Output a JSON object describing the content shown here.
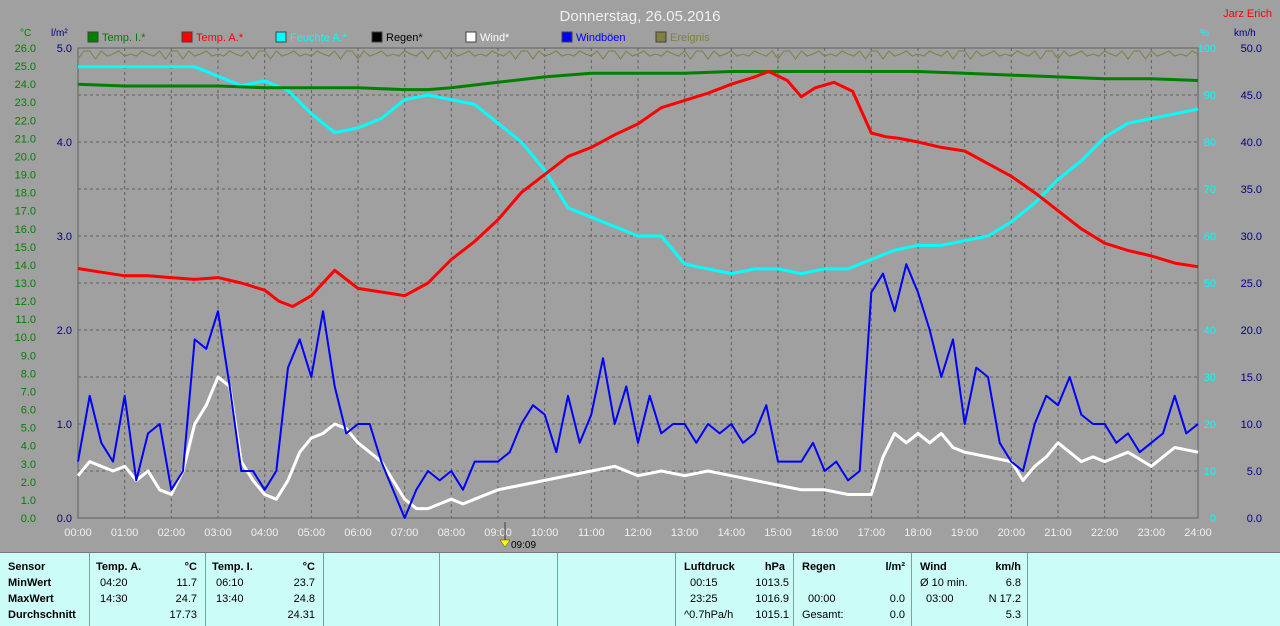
{
  "chart_data": {
    "type": "line",
    "title": "Donnerstag, 26.05.2016",
    "author": "Jarz Erich",
    "x_ticks": [
      "00:00",
      "01:00",
      "02:00",
      "03:00",
      "04:00",
      "05:00",
      "06:00",
      "07:00",
      "08:00",
      "09:00",
      "10:00",
      "11:00",
      "12:00",
      "13:00",
      "14:00",
      "15:00",
      "16:00",
      "17:00",
      "18:00",
      "19:00",
      "20:00",
      "21:00",
      "22:00",
      "23:00",
      "24:00"
    ],
    "marker_label": "09:09",
    "axes": {
      "temp": {
        "unit": "°C",
        "range": [
          0,
          26
        ],
        "ticks": [
          "0.0",
          "1.0",
          "2.0",
          "3.0",
          "4.0",
          "5.0",
          "6.0",
          "7.0",
          "8.0",
          "9.0",
          "10.0",
          "11.0",
          "12.0",
          "13.0",
          "14.0",
          "15.0",
          "16.0",
          "17.0",
          "18.0",
          "19.0",
          "20.0",
          "21.0",
          "22.0",
          "23.0",
          "24.0",
          "25.0",
          "26.0"
        ]
      },
      "rain": {
        "unit": "l/m²",
        "range": [
          0,
          5
        ],
        "ticks": [
          "0.0",
          "1.0",
          "2.0",
          "3.0",
          "4.0",
          "5.0"
        ]
      },
      "humidity": {
        "unit": "%",
        "range": [
          0,
          100
        ],
        "ticks": [
          "0",
          "10",
          "20",
          "30",
          "40",
          "50",
          "60",
          "70",
          "80",
          "90",
          "100"
        ]
      },
      "wind": {
        "unit": "km/h",
        "range": [
          0,
          50
        ],
        "ticks": [
          "0.0",
          "5.0",
          "10.0",
          "15.0",
          "20.0",
          "25.0",
          "30.0",
          "35.0",
          "40.0",
          "45.0",
          "50.0"
        ]
      }
    },
    "legend": [
      {
        "name": "Temp. I.*",
        "color": "#008000"
      },
      {
        "name": "Temp. A.*",
        "color": "#ff0000"
      },
      {
        "name": "Feuchte A.*",
        "color": "#00ffff"
      },
      {
        "name": "Regen*",
        "color": "#000000"
      },
      {
        "name": "Wind*",
        "color": "#ffffff"
      },
      {
        "name": "Windböen",
        "color": "#0000ff"
      },
      {
        "name": "Ereignis",
        "color": "#808040"
      }
    ],
    "series": [
      {
        "name": "Temp. I.*",
        "axis": "temp",
        "color": "#008000",
        "x": [
          0,
          1,
          2,
          3,
          4,
          5,
          6,
          7,
          7.5,
          8,
          9,
          10,
          11,
          12,
          13,
          14,
          15,
          16,
          17,
          18,
          19,
          20,
          21,
          22,
          23,
          24
        ],
        "y": [
          24.0,
          23.9,
          23.9,
          23.9,
          23.8,
          23.8,
          23.8,
          23.7,
          23.7,
          23.8,
          24.1,
          24.4,
          24.6,
          24.6,
          24.6,
          24.7,
          24.7,
          24.7,
          24.7,
          24.7,
          24.6,
          24.5,
          24.4,
          24.3,
          24.3,
          24.2
        ]
      },
      {
        "name": "Temp. A.*",
        "axis": "temp",
        "color": "#ff0000",
        "x": [
          0,
          0.5,
          1,
          1.5,
          2,
          2.5,
          3,
          3.5,
          4,
          4.3,
          4.6,
          5,
          5.5,
          6,
          6.5,
          7,
          7.5,
          8,
          8.5,
          9,
          9.5,
          10,
          10.5,
          11,
          11.5,
          12,
          12.5,
          13,
          13.5,
          14,
          14.5,
          14.8,
          15.2,
          15.5,
          15.8,
          16.2,
          16.6,
          17,
          17.3,
          17.6,
          18,
          18.5,
          19,
          19.5,
          20,
          20.5,
          21,
          21.5,
          22,
          22.5,
          23,
          23.5,
          24
        ],
        "y": [
          13.8,
          13.6,
          13.4,
          13.4,
          13.3,
          13.2,
          13.3,
          13.0,
          12.6,
          12.0,
          11.7,
          12.3,
          13.7,
          12.7,
          12.5,
          12.3,
          13.0,
          14.3,
          15.3,
          16.5,
          18.0,
          19.0,
          20.0,
          20.5,
          21.2,
          21.8,
          22.7,
          23.1,
          23.5,
          24.0,
          24.4,
          24.7,
          24.2,
          23.3,
          23.8,
          24.1,
          23.6,
          21.3,
          21.1,
          21.0,
          20.8,
          20.5,
          20.3,
          19.6,
          18.9,
          18.0,
          17.0,
          16.0,
          15.2,
          14.8,
          14.5,
          14.1,
          13.9
        ]
      },
      {
        "name": "Feuchte A.*",
        "axis": "humidity",
        "color": "#00ffff",
        "x": [
          0,
          0.5,
          1,
          1.5,
          2,
          2.5,
          3,
          3.5,
          4,
          4.5,
          5,
          5.5,
          6,
          6.5,
          7,
          7.5,
          8,
          8.5,
          9,
          9.5,
          10,
          10.5,
          11,
          11.5,
          12,
          12.5,
          13,
          13.5,
          14,
          14.5,
          15,
          15.5,
          16,
          16.5,
          17,
          17.5,
          18,
          18.5,
          19,
          19.5,
          20,
          20.5,
          21,
          21.5,
          22,
          22.5,
          23,
          23.5,
          24
        ],
        "y": [
          96,
          96,
          96,
          96,
          96,
          96,
          94,
          92,
          93,
          91,
          86,
          82,
          83,
          85,
          89,
          90,
          89,
          88,
          84,
          80,
          74,
          66,
          64,
          62,
          60,
          60,
          54,
          53,
          52,
          53,
          53,
          52,
          53,
          53,
          55,
          57,
          58,
          58,
          59,
          60,
          63,
          67,
          72,
          76,
          81,
          84,
          85,
          86,
          87
        ]
      },
      {
        "name": "Wind*",
        "axis": "wind",
        "color": "#ffffff",
        "x": [
          0,
          0.25,
          0.5,
          0.75,
          1,
          1.25,
          1.5,
          1.75,
          2,
          2.25,
          2.5,
          2.75,
          3,
          3.25,
          3.5,
          3.75,
          4,
          4.25,
          4.5,
          4.75,
          5,
          5.25,
          5.5,
          5.75,
          6,
          6.25,
          6.5,
          6.75,
          7,
          7.25,
          7.5,
          7.75,
          8,
          8.25,
          8.5,
          8.75,
          9,
          9.5,
          10,
          10.5,
          11,
          11.5,
          12,
          12.5,
          13,
          13.5,
          14,
          14.5,
          15,
          15.5,
          16,
          16.5,
          17,
          17.25,
          17.5,
          17.75,
          18,
          18.25,
          18.5,
          18.75,
          19,
          19.5,
          20,
          20.25,
          20.5,
          20.75,
          21,
          21.25,
          21.5,
          21.75,
          22,
          22.5,
          23,
          23.5,
          24
        ],
        "y": [
          4.5,
          6.0,
          5.5,
          5.0,
          5.5,
          4.0,
          5.0,
          3.0,
          2.5,
          5.0,
          10.0,
          12.0,
          15.0,
          14.0,
          6.0,
          4.0,
          2.5,
          2.0,
          4.0,
          7.0,
          8.5,
          9.0,
          10.0,
          9.5,
          8.0,
          7.0,
          6.0,
          4.0,
          2.0,
          1.0,
          1.0,
          1.5,
          2.0,
          1.5,
          2.0,
          2.5,
          3.0,
          3.5,
          4.0,
          4.5,
          5.0,
          5.5,
          4.5,
          5.0,
          4.5,
          5.0,
          4.5,
          4.0,
          3.5,
          3.0,
          3.0,
          2.5,
          2.5,
          6.5,
          9.0,
          8.0,
          9.0,
          8.0,
          9.0,
          7.5,
          7.0,
          6.5,
          6.0,
          4.0,
          5.5,
          6.5,
          8.0,
          7.0,
          6.0,
          6.5,
          6.0,
          7.0,
          5.5,
          7.5,
          7.0
        ]
      },
      {
        "name": "Windböen",
        "axis": "wind",
        "color": "#0000ff",
        "x": [
          0,
          0.25,
          0.5,
          0.75,
          1,
          1.25,
          1.5,
          1.75,
          2,
          2.25,
          2.5,
          2.75,
          3,
          3.25,
          3.5,
          3.75,
          4,
          4.25,
          4.5,
          4.75,
          5,
          5.25,
          5.5,
          5.75,
          6,
          6.25,
          6.5,
          6.75,
          7,
          7.25,
          7.5,
          7.75,
          8,
          8.25,
          8.5,
          8.75,
          9,
          9.25,
          9.5,
          9.75,
          10,
          10.25,
          10.5,
          10.75,
          11,
          11.25,
          11.5,
          11.75,
          12,
          12.25,
          12.5,
          12.75,
          13,
          13.25,
          13.5,
          13.75,
          14,
          14.25,
          14.5,
          14.75,
          15,
          15.25,
          15.5,
          15.75,
          16,
          16.25,
          16.5,
          16.75,
          17,
          17.25,
          17.5,
          17.75,
          18,
          18.25,
          18.5,
          18.75,
          19,
          19.25,
          19.5,
          19.75,
          20,
          20.25,
          20.5,
          20.75,
          21,
          21.25,
          21.5,
          21.75,
          22,
          22.25,
          22.5,
          22.75,
          23,
          23.25,
          23.5,
          23.75,
          24
        ],
        "y": [
          6,
          13,
          8,
          6,
          13,
          4,
          9,
          10,
          3,
          5,
          19,
          18,
          22,
          14,
          5,
          5,
          3,
          5,
          16,
          19,
          15,
          22,
          14,
          9,
          10,
          10,
          6,
          3,
          0,
          3,
          5,
          4,
          5,
          3,
          6,
          6,
          6,
          7,
          10,
          12,
          11,
          7,
          13,
          8,
          11,
          17,
          10,
          14,
          8,
          13,
          9,
          10,
          10,
          8,
          10,
          9,
          10,
          8,
          9,
          12,
          6,
          6,
          6,
          8,
          5,
          6,
          4,
          5,
          24,
          26,
          22,
          27,
          24,
          20,
          15,
          19,
          10,
          16,
          15,
          8,
          6,
          5,
          10,
          13,
          12,
          15,
          11,
          10,
          10,
          8,
          9,
          7,
          8,
          9,
          13,
          9,
          10
        ]
      }
    ]
  },
  "table": {
    "sensor": {
      "label": "Sensor",
      "min": "MinWert",
      "max": "MaxWert",
      "avg": "Durchschnitt"
    },
    "temp_a": {
      "label": "Temp. A.",
      "unit": "°C",
      "min_time": "04:20",
      "min_val": "11.7",
      "max_time": "14:30",
      "max_val": "24.7",
      "avg": "17.73"
    },
    "temp_i": {
      "label": "Temp. I.",
      "unit": "°C",
      "min_time": "06:10",
      "min_val": "23.7",
      "max_time": "13:40",
      "max_val": "24.8",
      "avg": "24.31"
    },
    "pressure": {
      "label": "Luftdruck",
      "unit": "hPa",
      "min_time": "00:15",
      "min_val": "1013.5",
      "max_time": "23:25",
      "max_val": "1016.9",
      "trend_label": "^0.7hPa/h",
      "trend_val": "1015.1"
    },
    "rain": {
      "label": "Regen",
      "unit": "l/m²",
      "r1_time": "00:00",
      "r1_val": "0.0",
      "r2_label": "Gesamt:",
      "r2_val": "0.0"
    },
    "wind": {
      "label": "Wind",
      "unit": "km/h",
      "r1_label": "Ø 10 min.",
      "r1_val": "6.8",
      "r2_time": "03:00",
      "r2_val": "N 17.2",
      "r3_val": "5.3"
    }
  }
}
